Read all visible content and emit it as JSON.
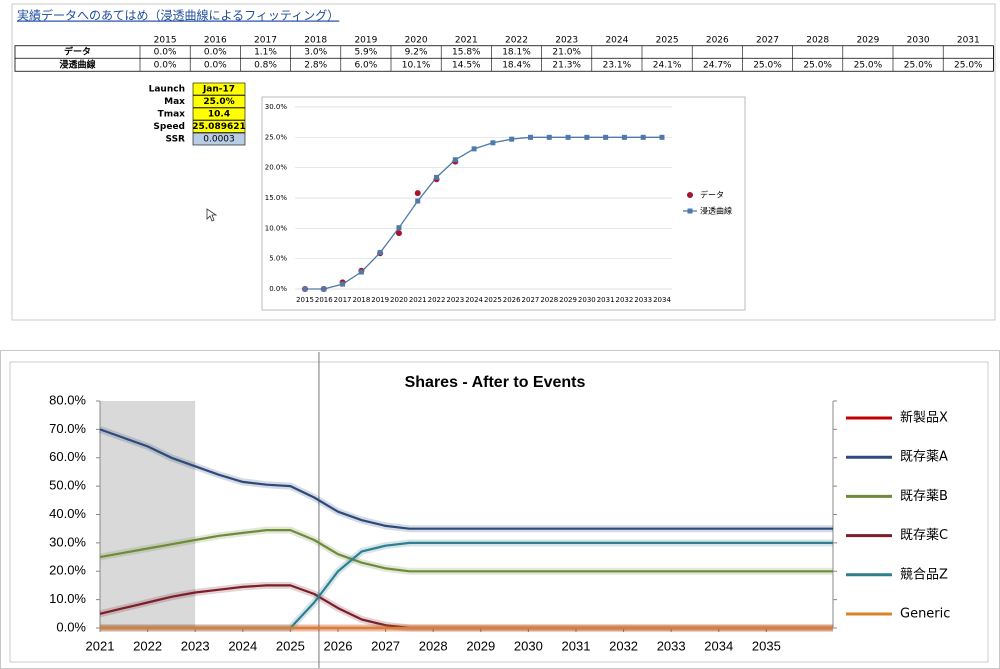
{
  "title": "実績データへのあてはめ（浸透曲線によるフィッティング）",
  "table": {
    "header": [
      "2015",
      "2016",
      "2017",
      "2018",
      "2019",
      "2020",
      "2021",
      "2022",
      "2023",
      "2024",
      "2025",
      "2026",
      "2027",
      "2028",
      "2029",
      "2030",
      "2031"
    ],
    "rows": [
      {
        "label": "データ",
        "cells": [
          "0.0%",
          "0.0%",
          "1.1%",
          "3.0%",
          "5.9%",
          "9.2%",
          "15.8%",
          "18.1%",
          "21.0%"
        ]
      },
      {
        "label": "浸透曲線",
        "cells": [
          "0.0%",
          "0.0%",
          "0.8%",
          "2.8%",
          "6.0%",
          "10.1%",
          "14.5%",
          "18.4%",
          "21.3%",
          "23.1%",
          "24.1%",
          "24.7%",
          "25.0%",
          "25.0%",
          "25.0%",
          "25.0%",
          "25.0%"
        ]
      }
    ]
  },
  "parameters": [
    {
      "label": "Launch",
      "value": "Jan-17"
    },
    {
      "label": "Max",
      "value": "25.0%"
    },
    {
      "label": "Tmax",
      "value": "10.4"
    },
    {
      "label": "Speed",
      "value": "25.089621"
    },
    {
      "label": "SSR",
      "value": "0.0003"
    }
  ],
  "chart_data": [
    {
      "type": "line",
      "categories": [
        "2015",
        "2016",
        "2017",
        "2018",
        "2019",
        "2020",
        "2021",
        "2022",
        "2023",
        "2024",
        "2025",
        "2026",
        "2027",
        "2028",
        "2029",
        "2030",
        "2031",
        "2032",
        "2033",
        "2034"
      ],
      "ylim": [
        0,
        30
      ],
      "yticks": [
        {
          "value": 0,
          "label": "0.0%"
        },
        {
          "value": 5,
          "label": "5.0%"
        },
        {
          "value": 10,
          "label": "10.0%"
        },
        {
          "value": 15,
          "label": "15.0%"
        },
        {
          "value": 20,
          "label": "20.0%"
        },
        {
          "value": 25,
          "label": "25.0%"
        },
        {
          "value": 30,
          "label": "30.0%"
        }
      ],
      "grid": true,
      "legend": "right",
      "series": [
        {
          "name": "データ",
          "color": "#a3162e",
          "style": "markers",
          "values": [
            0,
            0,
            1.1,
            3.0,
            5.9,
            9.2,
            15.8,
            18.1,
            21.0,
            null,
            null,
            null,
            null,
            null,
            null,
            null,
            null,
            null,
            null,
            null
          ]
        },
        {
          "name": "浸透曲線",
          "color": "#4f79a8",
          "style": "line",
          "values": [
            0,
            0,
            0.8,
            2.8,
            6.0,
            10.1,
            14.5,
            18.4,
            21.3,
            23.1,
            24.1,
            24.7,
            25.0,
            25.0,
            25.0,
            25.0,
            25.0,
            25.0,
            25.0,
            25.0
          ]
        }
      ]
    },
    {
      "type": "line",
      "title": "Shares - After to Events",
      "x": [
        2021,
        2021.5,
        2022,
        2022.5,
        2023,
        2023.5,
        2024,
        2024.5,
        2025,
        2025.5,
        2026,
        2026.5,
        2027,
        2027.5,
        2028,
        2030,
        2032,
        2034,
        2036.4
      ],
      "xlim": [
        2021,
        2036.4
      ],
      "xticks": [
        2021,
        2022,
        2023,
        2024,
        2025,
        2026,
        2027,
        2028,
        2029,
        2030,
        2031,
        2032,
        2033,
        2034,
        2035
      ],
      "ylim": [
        0,
        80
      ],
      "yticks": [
        {
          "value": 0,
          "label": "0.0%"
        },
        {
          "value": 10,
          "label": "10.0%"
        },
        {
          "value": 20,
          "label": "20.0%"
        },
        {
          "value": 30,
          "label": "30.0%"
        },
        {
          "value": 40,
          "label": "40.0%"
        },
        {
          "value": 50,
          "label": "50.0%"
        },
        {
          "value": 60,
          "label": "60.0%"
        },
        {
          "value": 70,
          "label": "70.0%"
        },
        {
          "value": 80,
          "label": "80.0%"
        }
      ],
      "grid": false,
      "legend": "right",
      "highlight": [
        2021,
        2023
      ],
      "event_line": 2025.6,
      "series": [
        {
          "name": "新製品X",
          "color": "#c00000",
          "values": [
            0,
            0,
            0,
            0,
            0,
            0,
            0,
            0,
            0,
            0,
            0,
            0,
            0,
            0,
            0,
            0,
            0,
            0,
            0
          ]
        },
        {
          "name": "既存薬A",
          "color": "#2e4a7a",
          "values": [
            70,
            67,
            64,
            60,
            57,
            54,
            51.5,
            50.5,
            50,
            46,
            41,
            38,
            36,
            35,
            35,
            35,
            35,
            35,
            35
          ]
        },
        {
          "name": "既存薬B",
          "color": "#6f8a3a",
          "values": [
            25,
            26.5,
            28,
            29.5,
            31,
            32.5,
            33.5,
            34.5,
            34.5,
            31,
            26,
            23,
            21,
            20,
            20,
            20,
            20,
            20,
            20
          ]
        },
        {
          "name": "既存薬C",
          "color": "#7a1f2a",
          "values": [
            5,
            7,
            9,
            11,
            12.5,
            13.5,
            14.5,
            15,
            15,
            12,
            7,
            3,
            1,
            0,
            0,
            0,
            0,
            0,
            0
          ]
        },
        {
          "name": "競合品Z",
          "color": "#2f7f8f",
          "values": [
            0,
            0,
            0,
            0,
            0,
            0,
            0,
            0,
            0,
            9,
            20,
            27,
            29,
            30,
            30,
            30,
            30,
            30,
            30
          ]
        },
        {
          "name": "Generic",
          "color": "#d9822b",
          "values": [
            0,
            0,
            0,
            0,
            0,
            0,
            0,
            0,
            0,
            0,
            0,
            0,
            0,
            0,
            0,
            0,
            0,
            0,
            0
          ]
        }
      ]
    }
  ]
}
